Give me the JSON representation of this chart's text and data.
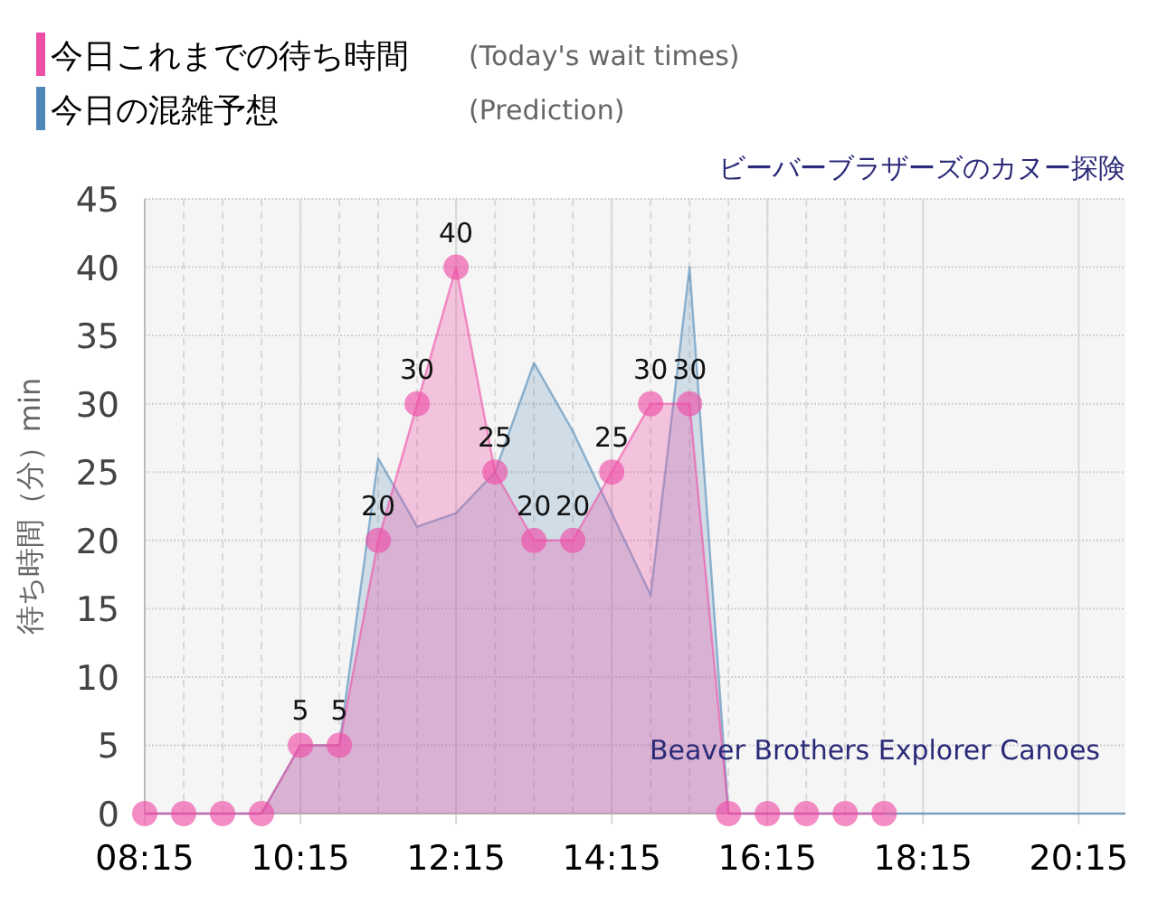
{
  "chart_data": {
    "type": "area",
    "title": "ビーバーブラザーズのカヌー探険",
    "ylabel": "待ち時間（分）min",
    "xlim": [
      8.25,
      20.85
    ],
    "ylim": [
      0,
      45
    ],
    "xticks": [
      {
        "value": 8.25,
        "label": "08:15"
      },
      {
        "value": 10.25,
        "label": "10:15"
      },
      {
        "value": 12.25,
        "label": "12:15"
      },
      {
        "value": 14.25,
        "label": "14:15"
      },
      {
        "value": 16.25,
        "label": "16:15"
      },
      {
        "value": 18.25,
        "label": "18:15"
      },
      {
        "value": 20.25,
        "label": "20:15"
      }
    ],
    "yticks": [
      0,
      5,
      10,
      15,
      20,
      25,
      30,
      35,
      40,
      45
    ],
    "grid": true,
    "legend": "top",
    "series": [
      {
        "name": "今日これまでの待ち時間",
        "color": "#ee4fa6",
        "marker": "circle",
        "x": [
          8.25,
          8.75,
          9.25,
          9.75,
          10.25,
          10.75,
          11.25,
          11.75,
          12.25,
          12.75,
          13.25,
          13.75,
          14.25,
          14.75,
          15.25,
          15.75,
          16.25,
          16.75,
          17.25,
          17.75
        ],
        "values": [
          0,
          0,
          0,
          0,
          5,
          5,
          20,
          30,
          40,
          25,
          20,
          20,
          25,
          30,
          30,
          0,
          0,
          0,
          0,
          0
        ],
        "value_labels": [
          null,
          null,
          null,
          null,
          "5",
          "5",
          "20",
          "30",
          "40",
          "25",
          "20",
          "20",
          "25",
          "30",
          "30",
          null,
          null,
          null,
          null,
          null
        ]
      },
      {
        "name": "今日の混雑予想",
        "color": "#4f88b8",
        "marker": "none",
        "x": [
          8.25,
          9.75,
          10.25,
          10.75,
          11.25,
          11.75,
          12.25,
          12.75,
          13.25,
          13.75,
          14.25,
          14.75,
          15.25,
          15.75,
          20.85
        ],
        "values": [
          0,
          0,
          5,
          5,
          26,
          21,
          22,
          25,
          33,
          28,
          22,
          16,
          40,
          0,
          0
        ]
      }
    ],
    "annotations": [
      "(Today's wait times)",
      "(Prediction)",
      "Beaver Brothers Explorer Canoes"
    ]
  }
}
